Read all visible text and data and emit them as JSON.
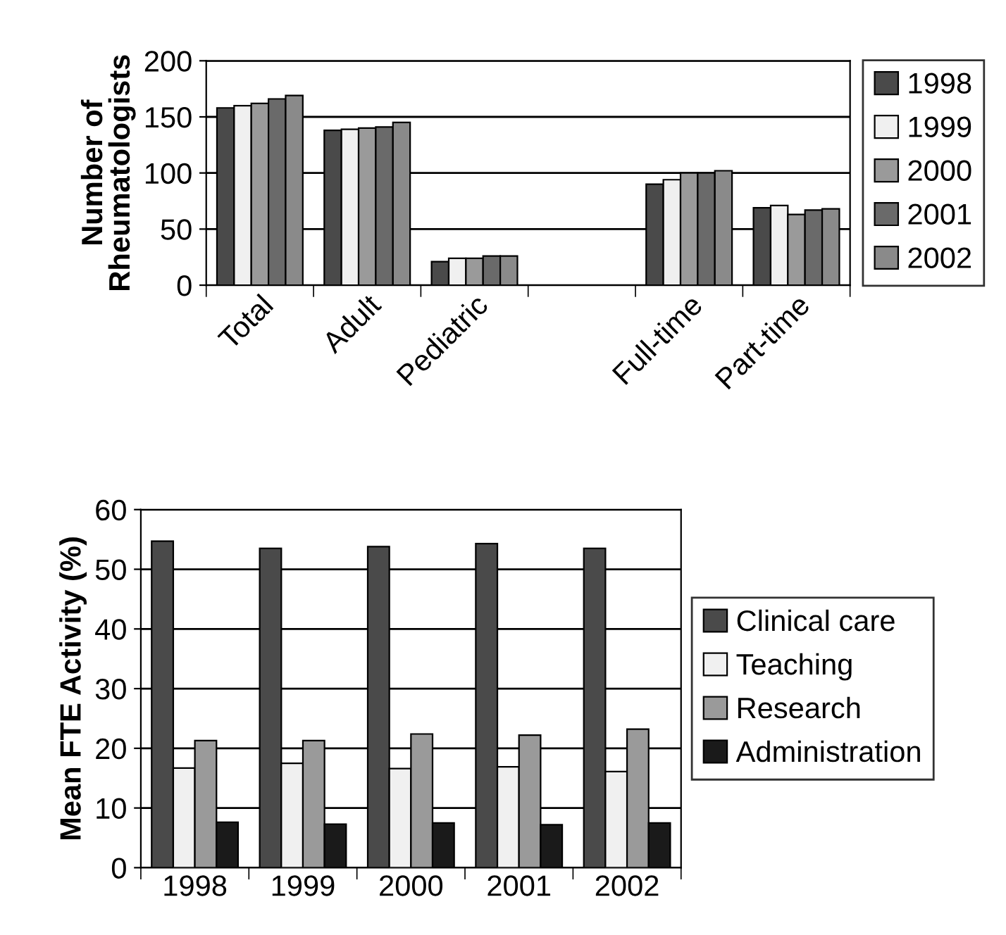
{
  "chart_data": [
    {
      "type": "bar",
      "ylabel": "Number of\nRheumatologists",
      "categories": [
        "Total",
        "Adult",
        "Pediatric",
        null,
        "Full-time",
        "Part-time"
      ],
      "ylim": [
        0,
        200
      ],
      "yticks": [
        0,
        50,
        100,
        150,
        200
      ],
      "grid": "y",
      "legend": "right",
      "series": [
        {
          "name": "1998",
          "color": "#4a4a4a",
          "values": [
            158,
            138,
            21,
            null,
            90,
            69
          ]
        },
        {
          "name": "1999",
          "color": "#f0f0f0",
          "values": [
            160,
            139,
            24,
            null,
            94,
            71
          ]
        },
        {
          "name": "2000",
          "color": "#9a9a9a",
          "values": [
            162,
            140,
            24,
            null,
            100,
            63
          ]
        },
        {
          "name": "2001",
          "color": "#6a6a6a",
          "values": [
            166,
            141,
            26,
            null,
            100,
            67
          ]
        },
        {
          "name": "2002",
          "color": "#8a8a8a",
          "values": [
            169,
            145,
            26,
            null,
            102,
            68
          ]
        }
      ]
    },
    {
      "type": "bar",
      "ylabel": "Mean FTE Activity (%)",
      "categories": [
        "1998",
        "1999",
        "2000",
        "2001",
        "2002"
      ],
      "ylim": [
        0,
        60
      ],
      "yticks": [
        0,
        10,
        20,
        30,
        40,
        50,
        60
      ],
      "grid": "y",
      "legend": "right",
      "series": [
        {
          "name": "Clinical care",
          "color": "#4a4a4a",
          "values": [
            54.7,
            53.5,
            53.8,
            54.3,
            53.5
          ]
        },
        {
          "name": "Teaching",
          "color": "#f0f0f0",
          "values": [
            16.7,
            17.5,
            16.6,
            16.9,
            16.1
          ]
        },
        {
          "name": "Research",
          "color": "#9a9a9a",
          "values": [
            21.3,
            21.3,
            22.4,
            22.2,
            23.2
          ]
        },
        {
          "name": "Administration",
          "color": "#1a1a1a",
          "values": [
            7.6,
            7.3,
            7.5,
            7.2,
            7.5
          ]
        }
      ]
    }
  ]
}
